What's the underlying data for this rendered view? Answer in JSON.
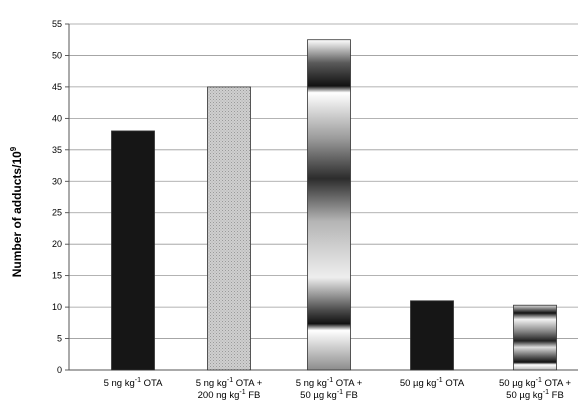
{
  "chart_data": {
    "type": "bar",
    "title": "",
    "xlabel": "",
    "ylabel": "Number of adducts/10",
    "ylabel_superscript": "9",
    "ylim": [
      0,
      55
    ],
    "yticks": [
      0,
      5,
      10,
      15,
      20,
      25,
      30,
      35,
      40,
      45,
      50,
      55
    ],
    "grid": true,
    "legend": "none",
    "categories": [
      [
        "5 ng kg",
        "-1",
        " OTA"
      ],
      [
        "5 ng kg",
        "-1",
        " OTA +",
        "200 ng kg",
        "-1",
        " FB",
        ""
      ],
      [
        "5 ng kg",
        "-1",
        " OTA +",
        "50 µg kg",
        "-1",
        " FB",
        ""
      ],
      [
        "50 µg kg",
        "-1",
        " OTA"
      ],
      [
        "50 µg kg",
        "-1",
        " OTA +",
        "50 µg kg",
        "-1",
        " FB",
        ""
      ]
    ],
    "category_labels_plain": [
      "5 ng kg-1 OTA",
      "5 ng kg-1 OTA + 200 ng kg-1 FB,",
      "5 ng kg-1 OTA + 50 µg kg-1 FB,",
      "50 µg kg-1 OTA",
      "50 µg kg-1 OTA + 50 µg kg-1 FB,"
    ],
    "values": [
      38,
      45,
      52.5,
      11,
      10.3
    ],
    "bar_styles": [
      "solid-black",
      "light-gray-dotted",
      "metallic-gradient",
      "solid-black",
      "metallic-gradient"
    ],
    "colors": {
      "black": "#161616",
      "gray": "#c7c7c7",
      "grid": "#9a9a9a"
    }
  }
}
